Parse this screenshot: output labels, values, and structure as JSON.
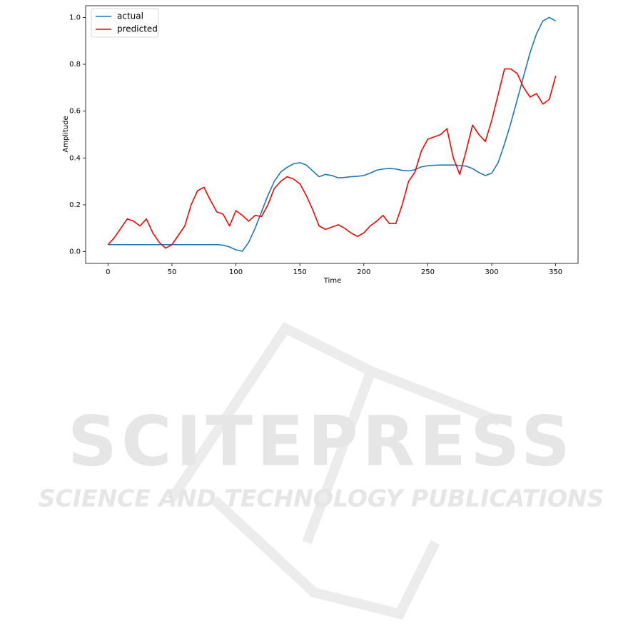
{
  "chart_data": {
    "type": "line",
    "xlabel": "Time",
    "ylabel": "Amplitude",
    "x": [
      0,
      5,
      10,
      15,
      20,
      25,
      30,
      35,
      40,
      45,
      50,
      55,
      60,
      65,
      70,
      75,
      80,
      85,
      90,
      95,
      100,
      105,
      110,
      115,
      120,
      125,
      130,
      135,
      140,
      145,
      150,
      155,
      160,
      165,
      170,
      175,
      180,
      185,
      190,
      195,
      200,
      205,
      210,
      215,
      220,
      225,
      230,
      235,
      240,
      245,
      250,
      255,
      260,
      265,
      270,
      275,
      280,
      285,
      290,
      295,
      300,
      305,
      310,
      315,
      320,
      325,
      330,
      335,
      340,
      345,
      350
    ],
    "series": [
      {
        "name": "actual",
        "color": "#1f77b4",
        "values": [
          0.03,
          0.03,
          0.03,
          0.03,
          0.03,
          0.03,
          0.03,
          0.03,
          0.03,
          0.03,
          0.03,
          0.03,
          0.03,
          0.03,
          0.03,
          0.03,
          0.03,
          0.03,
          0.028,
          0.02,
          0.008,
          0.002,
          0.04,
          0.1,
          0.17,
          0.24,
          0.3,
          0.34,
          0.36,
          0.375,
          0.38,
          0.37,
          0.345,
          0.32,
          0.33,
          0.325,
          0.315,
          0.317,
          0.32,
          0.322,
          0.325,
          0.335,
          0.348,
          0.353,
          0.355,
          0.353,
          0.347,
          0.345,
          0.35,
          0.362,
          0.367,
          0.369,
          0.37,
          0.37,
          0.37,
          0.368,
          0.365,
          0.355,
          0.338,
          0.325,
          0.335,
          0.38,
          0.46,
          0.55,
          0.65,
          0.75,
          0.85,
          0.93,
          0.985,
          1.0,
          0.985
        ]
      },
      {
        "name": "predicted",
        "color": "#ff0000",
        "values": [
          0.03,
          0.06,
          0.1,
          0.14,
          0.13,
          0.11,
          0.14,
          0.08,
          0.04,
          0.015,
          0.03,
          0.07,
          0.11,
          0.2,
          0.26,
          0.275,
          0.22,
          0.17,
          0.16,
          0.11,
          0.175,
          0.155,
          0.13,
          0.155,
          0.15,
          0.2,
          0.27,
          0.3,
          0.32,
          0.31,
          0.29,
          0.24,
          0.18,
          0.11,
          0.095,
          0.105,
          0.115,
          0.1,
          0.08,
          0.065,
          0.08,
          0.11,
          0.13,
          0.155,
          0.12,
          0.12,
          0.2,
          0.3,
          0.34,
          0.43,
          0.48,
          0.49,
          0.5,
          0.525,
          0.4,
          0.33,
          0.43,
          0.54,
          0.5,
          0.47,
          0.56,
          0.67,
          0.78,
          0.78,
          0.76,
          0.7,
          0.66,
          0.675,
          0.63,
          0.65,
          0.75
        ]
      }
    ],
    "xlim": [
      -17.5,
      367.5
    ],
    "xticks": [
      0,
      50,
      100,
      150,
      200,
      250,
      300,
      350
    ],
    "ylim": [
      -0.05,
      1.05
    ],
    "yticks": [
      {
        "value": 0,
        "label": "0.0"
      },
      0.2,
      0.4,
      0.6,
      0.8,
      {
        "value": 1,
        "label": "1.0"
      }
    ],
    "legend": "upper left"
  },
  "watermark": {
    "title": "SCITEPRESS",
    "subtitle": "SCIENCE AND TECHNOLOGY PUBLICATIONS"
  }
}
